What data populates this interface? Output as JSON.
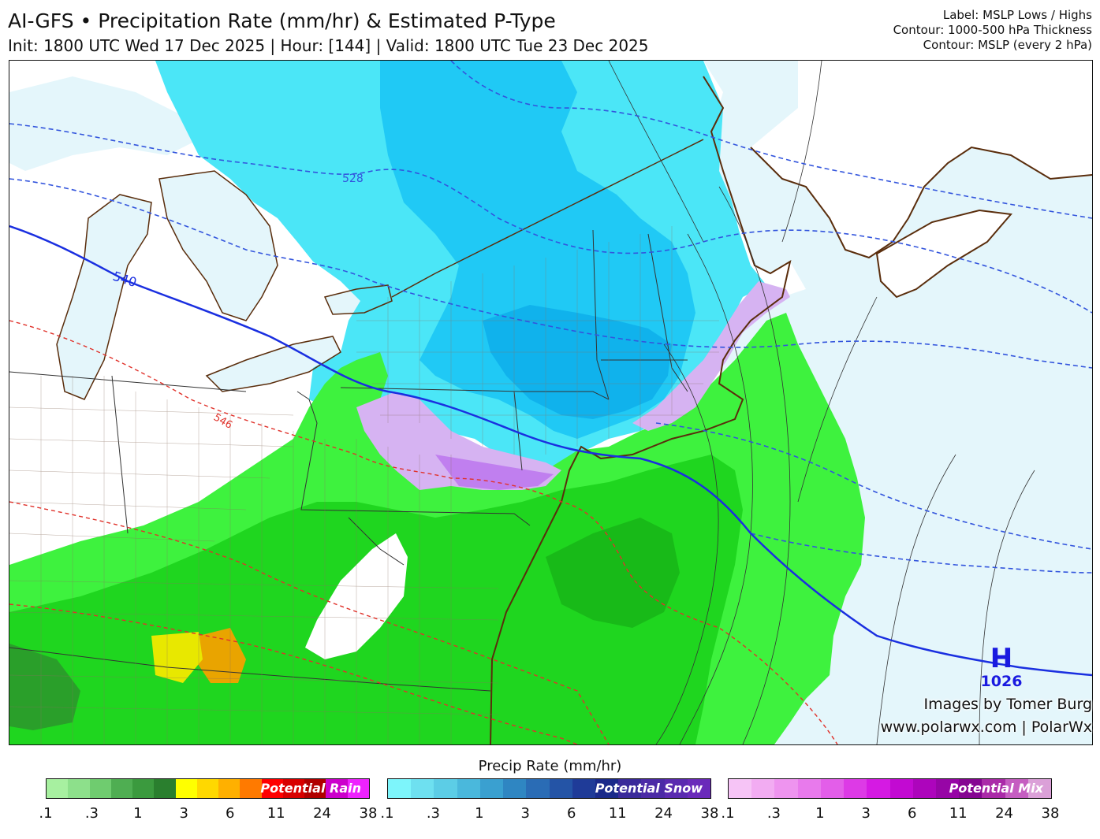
{
  "header": {
    "title": "AI-GFS • Precipitation Rate (mm/hr) & Estimated P-Type",
    "subtitle": "Init: 1800 UTC Wed 17 Dec 2025 | Hour: [144] | Valid: 1800 UTC Tue 23 Dec 2025",
    "meta_lines": [
      "Label: MSLP Lows / Highs",
      "Contour: 1000-500 hPa Thickness",
      "Contour: MSLP (every 2 hPa)"
    ]
  },
  "map": {
    "thickness_labels": [
      "528",
      "540",
      "546"
    ],
    "high_pressure": {
      "symbol": "H",
      "value": "1026"
    },
    "credit_line1": "Images by Tomer Burg",
    "credit_line2": "www.polarwx.com | PolarWx",
    "colors": {
      "ocean": "#e4f6fb",
      "land": "#ffffff",
      "rain": "#3ef23e",
      "rain_heavy": "#1fd61f",
      "snow": "#4be6f7",
      "snow_heavy": "#20c9f5",
      "mix": "#d6b3f2",
      "thickness_540": "#1a2fe0",
      "thickness_other": "#3355dd",
      "thickness_546": "#e0322b",
      "coast": "#5a2d0c"
    }
  },
  "legend": {
    "title": "Precip Rate (mm/hr)",
    "rain": {
      "label": "Potential Rain",
      "colors": [
        "#a7f0a0",
        "#8de08b",
        "#6fcc6f",
        "#4fae52",
        "#3b9a3e",
        "#2a7f2e",
        "#ffff00",
        "#ffd800",
        "#ffb000",
        "#ff7a00",
        "#ff0000",
        "#d80000",
        "#b00000",
        "#cc00cc",
        "#ee22ff"
      ],
      "ticks": [
        ".1",
        ".3",
        "1",
        "3",
        "6",
        "11",
        "24",
        "38"
      ]
    },
    "snow": {
      "label": "Potential Snow",
      "colors": [
        "#7df5fb",
        "#6ee0f0",
        "#5ccde6",
        "#4ab8dc",
        "#3aa0d0",
        "#2f86c2",
        "#2a6cb5",
        "#2454a6",
        "#1f3b98",
        "#1a2a8a",
        "#3a2a9a",
        "#4b2aa6",
        "#5a2ab0",
        "#6a2aba"
      ],
      "ticks": [
        ".1",
        ".3",
        "1",
        "3",
        "6",
        "11",
        "24",
        "38"
      ]
    },
    "mix": {
      "label": "Potential Mix",
      "colors": [
        "#f6c4f6",
        "#f2acf2",
        "#ee94ef",
        "#e87aec",
        "#e35ee9",
        "#dd3ae6",
        "#d51ae3",
        "#c20ad2",
        "#ad05bc",
        "#9705a6",
        "#850592",
        "#aa2aa8",
        "#c55dc1",
        "#dba0d8"
      ],
      "ticks": [
        ".1",
        ".3",
        "1",
        "3",
        "6",
        "11",
        "24",
        "38"
      ]
    }
  }
}
